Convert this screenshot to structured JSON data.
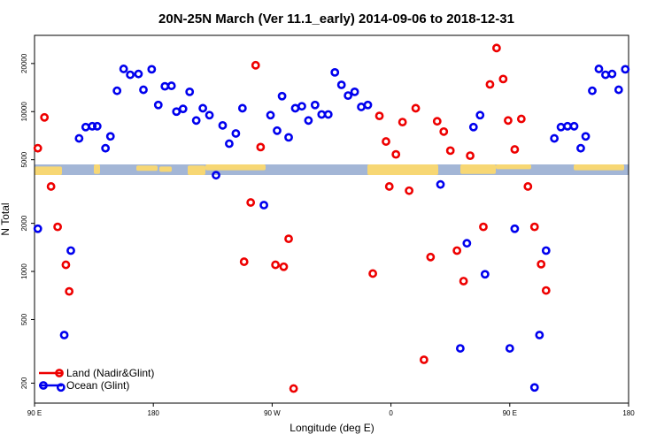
{
  "chart_data": {
    "type": "scatter",
    "title": "20N-25N March (Ver 11.1_early)   2014-09-06 to 2018-12-31",
    "xlabel": "Longitude (deg E)",
    "ylabel": "N Total",
    "y_scale": "log",
    "xlim": [
      0,
      360
    ],
    "ylim": [
      150,
      30000
    ],
    "x_ticks": [
      {
        "value": 0,
        "label": "90 E"
      },
      {
        "value": 72,
        "label": "180"
      },
      {
        "value": 144,
        "label": "90 W"
      },
      {
        "value": 216,
        "label": "0"
      },
      {
        "value": 288,
        "label": "90 E"
      },
      {
        "value": 360,
        "label": "180"
      }
    ],
    "y_ticks": [
      {
        "value": 200,
        "label": "200"
      },
      {
        "value": 500,
        "label": "500"
      },
      {
        "value": 1000,
        "label": "1000"
      },
      {
        "value": 2000,
        "label": "2000"
      },
      {
        "value": 5000,
        "label": "5000"
      },
      {
        "value": 10000,
        "label": "10000"
      },
      {
        "value": 20000,
        "label": "20000"
      }
    ],
    "legend_position": "bottom-left",
    "grid": false,
    "series": [
      {
        "name": "Land (Nadir&Glint)",
        "color": "#ee0000",
        "points": [
          [
            2,
            5900
          ],
          [
            6,
            9200
          ],
          [
            10,
            3400
          ],
          [
            14,
            1900
          ],
          [
            19,
            1100
          ],
          [
            21,
            750
          ],
          [
            127,
            1150
          ],
          [
            131,
            2700
          ],
          [
            134,
            19500
          ],
          [
            137,
            6000
          ],
          [
            146,
            1100
          ],
          [
            151,
            1070
          ],
          [
            154,
            1600
          ],
          [
            157,
            185
          ],
          [
            205,
            970
          ],
          [
            209,
            9400
          ],
          [
            213,
            6500
          ],
          [
            219,
            5400
          ],
          [
            215,
            3400
          ],
          [
            223,
            8600
          ],
          [
            227,
            3200
          ],
          [
            231,
            10500
          ],
          [
            236,
            280
          ],
          [
            240,
            1230
          ],
          [
            244,
            8700
          ],
          [
            248,
            7500
          ],
          [
            252,
            5700
          ],
          [
            256,
            1350
          ],
          [
            260,
            870
          ],
          [
            264,
            5300
          ],
          [
            272,
            1900
          ],
          [
            276,
            14800
          ],
          [
            280,
            25000
          ],
          [
            284,
            16000
          ],
          [
            287,
            8800
          ],
          [
            291,
            5800
          ],
          [
            295,
            9000
          ],
          [
            299,
            3400
          ],
          [
            303,
            1900
          ],
          [
            307,
            1110
          ],
          [
            310,
            760
          ]
        ]
      },
      {
        "name": "Ocean (Glint)",
        "color": "#0000ee",
        "points": [
          [
            2,
            1850
          ],
          [
            16,
            188
          ],
          [
            18,
            400
          ],
          [
            22,
            1350
          ],
          [
            27,
            6800
          ],
          [
            31,
            8000
          ],
          [
            35,
            8100
          ],
          [
            38,
            8100
          ],
          [
            43,
            5900
          ],
          [
            46,
            7000
          ],
          [
            50,
            13500
          ],
          [
            54,
            18500
          ],
          [
            58,
            17000
          ],
          [
            63,
            17200
          ],
          [
            66,
            13700
          ],
          [
            71,
            18400
          ],
          [
            75,
            11000
          ],
          [
            79,
            14400
          ],
          [
            83,
            14500
          ],
          [
            86,
            10000
          ],
          [
            90,
            10400
          ],
          [
            94,
            13300
          ],
          [
            98,
            8800
          ],
          [
            102,
            10500
          ],
          [
            106,
            9500
          ],
          [
            110,
            4000
          ],
          [
            114,
            8200
          ],
          [
            118,
            6300
          ],
          [
            122,
            7300
          ],
          [
            126,
            10500
          ],
          [
            139,
            2600
          ],
          [
            143,
            9500
          ],
          [
            147,
            7600
          ],
          [
            150,
            12500
          ],
          [
            154,
            6900
          ],
          [
            158,
            10500
          ],
          [
            162,
            10800
          ],
          [
            166,
            8800
          ],
          [
            170,
            11000
          ],
          [
            174,
            9600
          ],
          [
            178,
            9600
          ],
          [
            182,
            17600
          ],
          [
            186,
            14700
          ],
          [
            190,
            12600
          ],
          [
            194,
            13300
          ],
          [
            198,
            10700
          ],
          [
            202,
            11000
          ],
          [
            246,
            3500
          ],
          [
            258,
            330
          ],
          [
            262,
            1500
          ],
          [
            266,
            8000
          ],
          [
            270,
            9500
          ],
          [
            273,
            960
          ],
          [
            288,
            330
          ],
          [
            291,
            1850
          ],
          [
            303,
            188
          ],
          [
            306,
            400
          ],
          [
            310,
            1350
          ],
          [
            315,
            6800
          ],
          [
            319,
            8000
          ],
          [
            323,
            8100
          ],
          [
            327,
            8100
          ],
          [
            331,
            5900
          ],
          [
            334,
            7000
          ],
          [
            338,
            13500
          ],
          [
            342,
            18500
          ],
          [
            346,
            17000
          ],
          [
            350,
            17200
          ],
          [
            354,
            13700
          ],
          [
            358,
            18400
          ]
        ]
      }
    ]
  }
}
